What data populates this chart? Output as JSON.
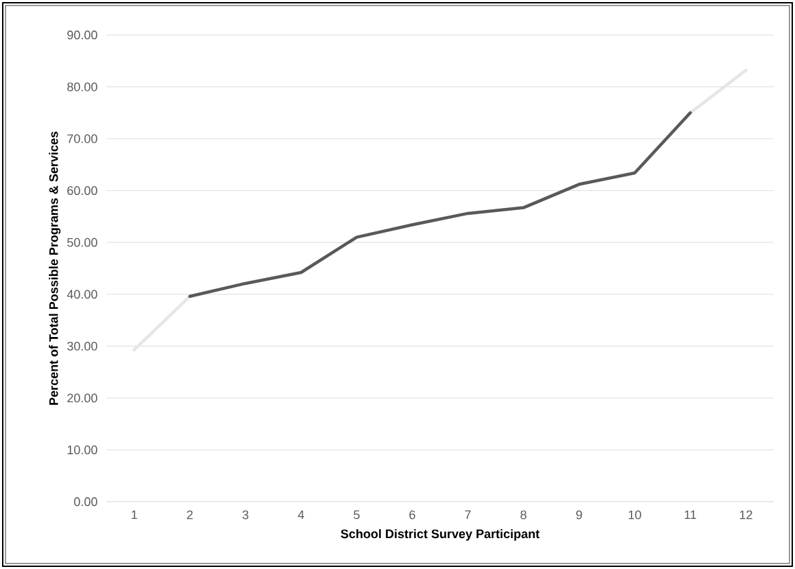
{
  "chart_data": {
    "type": "line",
    "xlabel": "School District Survey Participant",
    "ylabel": "Percent of Total Possible Programs & Services",
    "categories": [
      "1",
      "2",
      "3",
      "4",
      "5",
      "6",
      "7",
      "8",
      "9",
      "10",
      "11",
      "12"
    ],
    "series": [
      {
        "color": "#e7e6e6",
        "values": [
          29.3,
          39.6,
          null,
          null,
          null,
          null,
          null,
          null,
          null,
          null,
          75.0,
          83.2
        ]
      },
      {
        "color": "#595959",
        "values": [
          null,
          39.6,
          42.1,
          44.2,
          51.0,
          53.4,
          55.6,
          56.7,
          61.2,
          63.4,
          75.0,
          null
        ]
      }
    ],
    "ylim": [
      0,
      90
    ],
    "yticks": [
      {
        "value": 0,
        "label": "0.00"
      },
      {
        "value": 10,
        "label": "10.00"
      },
      {
        "value": 20,
        "label": "20.00"
      },
      {
        "value": 30,
        "label": "30.00"
      },
      {
        "value": 40,
        "label": "40.00"
      },
      {
        "value": 50,
        "label": "50.00"
      },
      {
        "value": 60,
        "label": "60.00"
      },
      {
        "value": 70,
        "label": "70.00"
      },
      {
        "value": 80,
        "label": "80.00"
      },
      {
        "value": 90,
        "label": "90.00"
      }
    ],
    "grid": "y",
    "marker": "none",
    "line_style": "solid"
  }
}
